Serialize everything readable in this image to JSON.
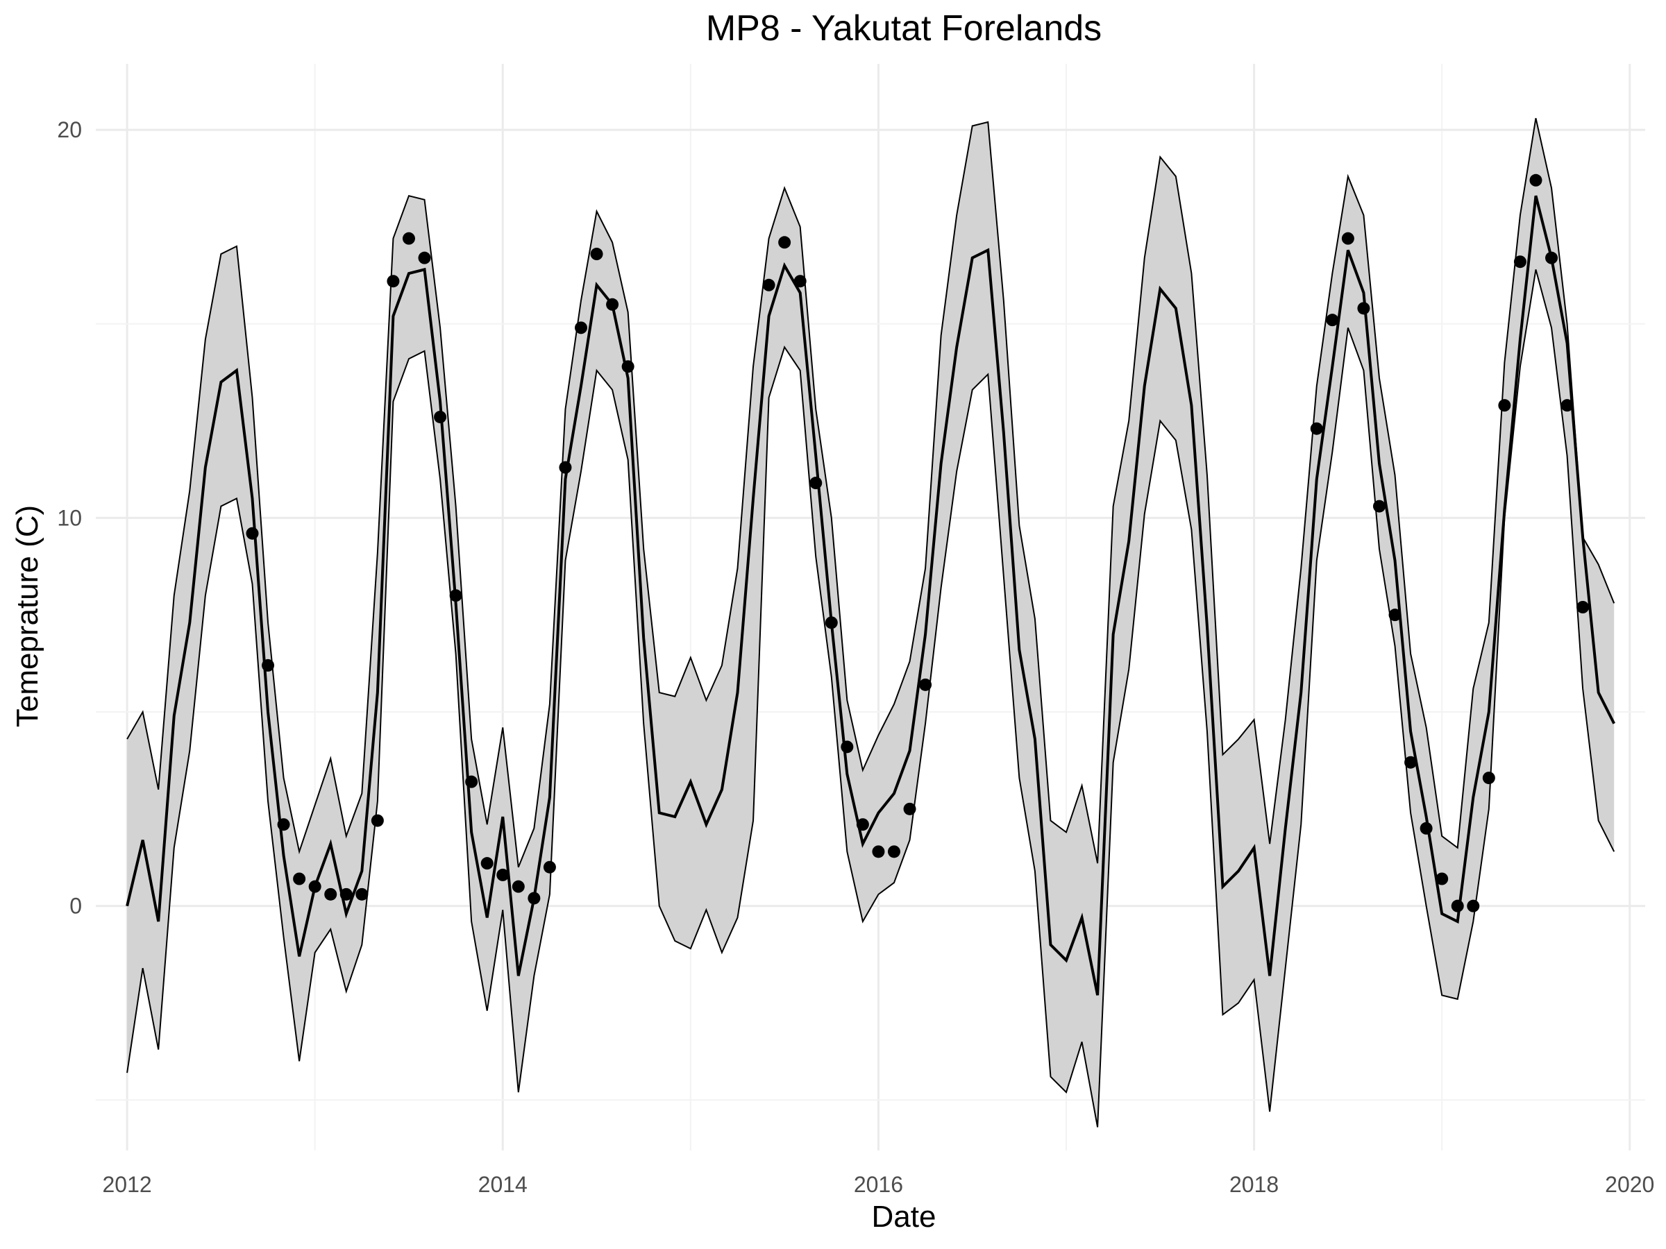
{
  "chart_data": {
    "type": "line",
    "title": "MP8 - Yakutat Forelands",
    "xlabel": "Date",
    "ylabel": "Temeprature (C)",
    "xlim": [
      "2011-11-01",
      "2020-01-31"
    ],
    "ylim": [
      -6.3,
      21.7
    ],
    "x_ticks": [
      "2012",
      "2014",
      "2016",
      "2018",
      "2020"
    ],
    "y_ticks": [
      0,
      10,
      20
    ],
    "y_tick_labels": [
      "0",
      "10",
      "20"
    ],
    "grid": true,
    "legend": "none",
    "series": [
      {
        "role": "fitted",
        "x": [
          "2012-01",
          "2012-02",
          "2012-03",
          "2012-04",
          "2012-05",
          "2012-06",
          "2012-07",
          "2012-08",
          "2012-09",
          "2012-10",
          "2012-11",
          "2012-12",
          "2013-01",
          "2013-02",
          "2013-03",
          "2013-04",
          "2013-05",
          "2013-06",
          "2013-07",
          "2013-08",
          "2013-09",
          "2013-10",
          "2013-11",
          "2013-12",
          "2014-01",
          "2014-02",
          "2014-03",
          "2014-04",
          "2014-05",
          "2014-06",
          "2014-07",
          "2014-08",
          "2014-09",
          "2014-10",
          "2014-11",
          "2014-12",
          "2015-01",
          "2015-02",
          "2015-03",
          "2015-04",
          "2015-05",
          "2015-06",
          "2015-07",
          "2015-08",
          "2015-09",
          "2015-10",
          "2015-11",
          "2015-12",
          "2016-01",
          "2016-02",
          "2016-03",
          "2016-04",
          "2016-05",
          "2016-06",
          "2016-07",
          "2016-08",
          "2016-09",
          "2016-10",
          "2016-11",
          "2016-12",
          "2017-01",
          "2017-02",
          "2017-03",
          "2017-04",
          "2017-05",
          "2017-06",
          "2017-07",
          "2017-08",
          "2017-09",
          "2017-10",
          "2017-11",
          "2017-12",
          "2018-01",
          "2018-02",
          "2018-03",
          "2018-04",
          "2018-05",
          "2018-06",
          "2018-07",
          "2018-08",
          "2018-09",
          "2018-10",
          "2018-11",
          "2018-12",
          "2019-01",
          "2019-02",
          "2019-03",
          "2019-04",
          "2019-05",
          "2019-06",
          "2019-07",
          "2019-08",
          "2019-09",
          "2019-10",
          "2019-11",
          "2019-12"
        ],
        "values": [
          0.0,
          1.7,
          -0.4,
          4.9,
          7.3,
          11.3,
          13.5,
          13.8,
          10.5,
          5.0,
          1.3,
          -1.3,
          0.5,
          1.6,
          -0.2,
          0.9,
          5.5,
          15.2,
          16.3,
          16.4,
          13.0,
          7.8,
          1.9,
          -0.3,
          2.3,
          -1.8,
          0.2,
          2.8,
          11.0,
          13.4,
          16.0,
          15.5,
          13.6,
          6.9,
          2.4,
          2.3,
          3.2,
          2.1,
          3.0,
          5.5,
          10.5,
          15.2,
          16.5,
          15.8,
          11.6,
          7.3,
          3.4,
          1.6,
          2.4,
          2.9,
          4.0,
          7.0,
          11.4,
          14.4,
          16.7,
          16.9,
          12.2,
          6.6,
          4.3,
          -1.0,
          -1.4,
          -0.3,
          -2.3,
          7.0,
          9.4,
          13.4,
          15.9,
          15.4,
          12.9,
          7.2,
          0.5,
          0.9,
          1.5,
          -1.8,
          2.0,
          5.5,
          11.0,
          13.9,
          16.9,
          15.8,
          11.4,
          8.9,
          4.5,
          2.3,
          -0.2,
          -0.4,
          2.8,
          5.0,
          10.2,
          14.6,
          18.3,
          16.7,
          14.5,
          9.5,
          5.5,
          4.7
        ]
      },
      {
        "role": "upper",
        "x": [
          "2012-01",
          "2012-02",
          "2012-03",
          "2012-04",
          "2012-05",
          "2012-06",
          "2012-07",
          "2012-08",
          "2012-09",
          "2012-10",
          "2012-11",
          "2012-12",
          "2013-01",
          "2013-02",
          "2013-03",
          "2013-04",
          "2013-05",
          "2013-06",
          "2013-07",
          "2013-08",
          "2013-09",
          "2013-10",
          "2013-11",
          "2013-12",
          "2014-01",
          "2014-02",
          "2014-03",
          "2014-04",
          "2014-05",
          "2014-06",
          "2014-07",
          "2014-08",
          "2014-09",
          "2014-10",
          "2014-11",
          "2014-12",
          "2015-01",
          "2015-02",
          "2015-03",
          "2015-04",
          "2015-05",
          "2015-06",
          "2015-07",
          "2015-08",
          "2015-09",
          "2015-10",
          "2015-11",
          "2015-12",
          "2016-01",
          "2016-02",
          "2016-03",
          "2016-04",
          "2016-05",
          "2016-06",
          "2016-07",
          "2016-08",
          "2016-09",
          "2016-10",
          "2016-11",
          "2016-12",
          "2017-01",
          "2017-02",
          "2017-03",
          "2017-04",
          "2017-05",
          "2017-06",
          "2017-07",
          "2017-08",
          "2017-09",
          "2017-10",
          "2017-11",
          "2017-12",
          "2018-01",
          "2018-02",
          "2018-03",
          "2018-04",
          "2018-05",
          "2018-06",
          "2018-07",
          "2018-08",
          "2018-09",
          "2018-10",
          "2018-11",
          "2018-12",
          "2019-01",
          "2019-02",
          "2019-03",
          "2019-04",
          "2019-05",
          "2019-06",
          "2019-07",
          "2019-08",
          "2019-09",
          "2019-10",
          "2019-11",
          "2019-12"
        ],
        "values": [
          4.3,
          5.0,
          3.0,
          8.0,
          10.7,
          14.6,
          16.8,
          17.0,
          13.1,
          7.3,
          3.3,
          1.4,
          2.6,
          3.8,
          1.8,
          2.9,
          9.1,
          17.2,
          18.3,
          18.2,
          14.9,
          10.3,
          4.3,
          2.1,
          4.6,
          1.0,
          2.0,
          5.2,
          12.8,
          15.6,
          17.9,
          17.1,
          15.3,
          9.2,
          5.5,
          5.4,
          6.4,
          5.3,
          6.2,
          8.7,
          13.9,
          17.2,
          18.5,
          17.5,
          12.8,
          10.0,
          5.3,
          3.5,
          4.4,
          5.2,
          6.3,
          8.7,
          14.7,
          17.8,
          20.1,
          20.2,
          15.6,
          9.8,
          7.4,
          2.2,
          1.9,
          3.1,
          1.1,
          10.3,
          12.5,
          16.7,
          19.3,
          18.8,
          16.3,
          11.1,
          3.9,
          4.3,
          4.8,
          1.6,
          4.8,
          8.7,
          13.4,
          16.3,
          18.8,
          17.8,
          13.6,
          11.1,
          6.5,
          4.6,
          1.8,
          1.5,
          5.6,
          7.3,
          14.0,
          17.8,
          20.3,
          18.5,
          15.0,
          9.5,
          8.8,
          7.8
        ]
      },
      {
        "role": "lower",
        "x": [
          "2012-01",
          "2012-02",
          "2012-03",
          "2012-04",
          "2012-05",
          "2012-06",
          "2012-07",
          "2012-08",
          "2012-09",
          "2012-10",
          "2012-11",
          "2012-12",
          "2013-01",
          "2013-02",
          "2013-03",
          "2013-04",
          "2013-05",
          "2013-06",
          "2013-07",
          "2013-08",
          "2013-09",
          "2013-10",
          "2013-11",
          "2013-12",
          "2014-01",
          "2014-02",
          "2014-03",
          "2014-04",
          "2014-05",
          "2014-06",
          "2014-07",
          "2014-08",
          "2014-09",
          "2014-10",
          "2014-11",
          "2014-12",
          "2015-01",
          "2015-02",
          "2015-03",
          "2015-04",
          "2015-05",
          "2015-06",
          "2015-07",
          "2015-08",
          "2015-09",
          "2015-10",
          "2015-11",
          "2015-12",
          "2016-01",
          "2016-02",
          "2016-03",
          "2016-04",
          "2016-05",
          "2016-06",
          "2016-07",
          "2016-08",
          "2016-09",
          "2016-10",
          "2016-11",
          "2016-12",
          "2017-01",
          "2017-02",
          "2017-03",
          "2017-04",
          "2017-05",
          "2017-06",
          "2017-07",
          "2017-08",
          "2017-09",
          "2017-10",
          "2017-11",
          "2017-12",
          "2018-01",
          "2018-02",
          "2018-03",
          "2018-04",
          "2018-05",
          "2018-06",
          "2018-07",
          "2018-08",
          "2018-09",
          "2018-10",
          "2018-11",
          "2018-12",
          "2019-01",
          "2019-02",
          "2019-03",
          "2019-04",
          "2019-05",
          "2019-06",
          "2019-07",
          "2019-08",
          "2019-09",
          "2019-10",
          "2019-11",
          "2019-12"
        ],
        "values": [
          -4.3,
          -1.6,
          -3.7,
          1.5,
          4.0,
          8.0,
          10.3,
          10.5,
          8.3,
          2.7,
          -0.8,
          -4.0,
          -1.2,
          -0.6,
          -2.2,
          -1.0,
          2.7,
          13.0,
          14.1,
          14.3,
          11.0,
          6.5,
          -0.4,
          -2.7,
          -0.1,
          -4.8,
          -1.8,
          0.3,
          8.9,
          11.2,
          13.8,
          13.3,
          11.5,
          4.7,
          0.0,
          -0.9,
          -1.1,
          -0.1,
          -1.2,
          -0.3,
          2.2,
          13.1,
          14.4,
          13.8,
          9.0,
          5.9,
          1.4,
          -0.4,
          0.3,
          0.6,
          1.7,
          4.7,
          8.2,
          11.2,
          13.3,
          13.7,
          8.5,
          3.3,
          0.9,
          -4.4,
          -4.8,
          -3.5,
          -5.7,
          3.7,
          6.1,
          10.1,
          12.5,
          12.0,
          9.7,
          4.5,
          -2.8,
          -2.5,
          -1.9,
          -5.3,
          -1.6,
          2.1,
          8.9,
          11.7,
          14.9,
          13.8,
          9.2,
          6.7,
          2.4,
          0.0,
          -2.3,
          -2.4,
          -0.4,
          2.5,
          10.0,
          13.9,
          16.4,
          14.9,
          11.6,
          5.6,
          2.2,
          1.4
        ]
      },
      {
        "role": "observed",
        "x": [
          "2012-09",
          "2012-10",
          "2012-11",
          "2012-12",
          "2013-01",
          "2013-02",
          "2013-03",
          "2013-04",
          "2013-05",
          "2013-06",
          "2013-07",
          "2013-08",
          "2013-09",
          "2013-10",
          "2013-11",
          "2013-12",
          "2014-01",
          "2014-02",
          "2014-03",
          "2014-04",
          "2014-05",
          "2014-06",
          "2014-07",
          "2014-08",
          "2014-09",
          "2015-06",
          "2015-07",
          "2015-08",
          "2015-09",
          "2015-10",
          "2015-11",
          "2015-12",
          "2016-01",
          "2016-02",
          "2016-03",
          "2016-04",
          "2018-05",
          "2018-06",
          "2018-07",
          "2018-08",
          "2018-09",
          "2018-10",
          "2018-11",
          "2018-12",
          "2019-01",
          "2019-02",
          "2019-03",
          "2019-04",
          "2019-05",
          "2019-06",
          "2019-07",
          "2019-08",
          "2019-09",
          "2019-10"
        ],
        "values": [
          9.6,
          6.2,
          2.1,
          0.7,
          0.5,
          0.3,
          0.3,
          0.3,
          2.2,
          16.1,
          17.2,
          16.7,
          12.6,
          8.0,
          3.2,
          1.1,
          0.8,
          0.5,
          0.2,
          1.0,
          11.3,
          14.9,
          16.8,
          15.5,
          13.9,
          16.0,
          17.1,
          16.1,
          10.9,
          7.3,
          4.1,
          2.1,
          1.4,
          1.4,
          2.5,
          5.7,
          12.3,
          15.1,
          17.2,
          15.4,
          10.3,
          7.5,
          3.7,
          2.0,
          0.7,
          0.0,
          -0.0,
          3.3,
          12.9,
          16.6,
          18.7,
          16.7,
          12.9,
          7.7
        ]
      }
    ]
  }
}
